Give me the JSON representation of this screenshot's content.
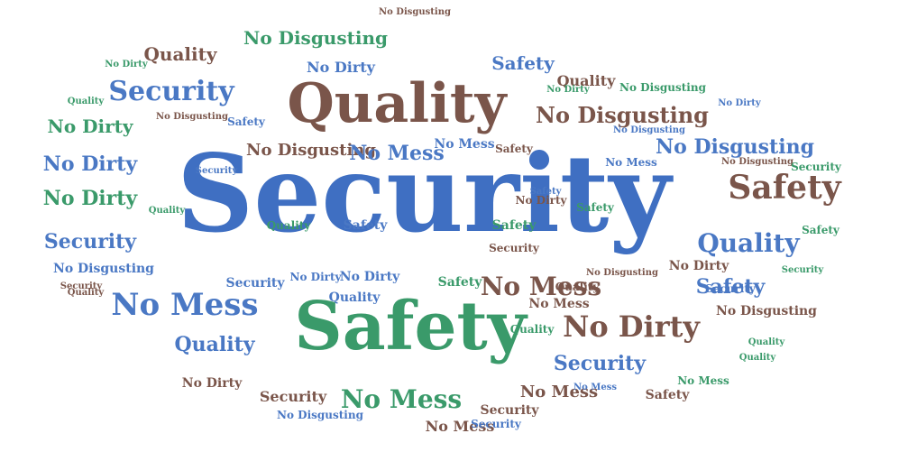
{
  "palette": {
    "blue": "#4a78c4",
    "lightblue": "#5b8fd6",
    "green": "#3a9a6a",
    "brown": "#7a554a",
    "royal": "#3f6fc2"
  },
  "words": [
    {
      "text": "Security",
      "color": "royal",
      "size": "xxl"
    },
    {
      "text": "Safety",
      "color": "green",
      "size": "xl"
    },
    {
      "text": "Quality",
      "color": "brown",
      "size": "xl"
    },
    {
      "text": "No Mess",
      "color": "blue",
      "size": "l"
    },
    {
      "text": "Safety",
      "color": "brown",
      "size": "l"
    },
    {
      "text": "No Dirty",
      "color": "brown",
      "size": "l"
    },
    {
      "text": "No Mess",
      "color": "green",
      "size": "l"
    },
    {
      "text": "Security",
      "color": "blue",
      "size": "m"
    },
    {
      "text": "Quality",
      "color": "blue",
      "size": "m"
    },
    {
      "text": "No Mess",
      "color": "brown",
      "size": "m"
    },
    {
      "text": "No Disgusting",
      "color": "brown",
      "size": "m"
    },
    {
      "text": "No Disgusting",
      "color": "blue",
      "size": "m"
    },
    {
      "text": "No Disgusting",
      "color": "green",
      "size": "m"
    },
    {
      "text": "No Disgusting",
      "color": "brown",
      "size": "s"
    },
    {
      "text": "No Mess",
      "color": "blue",
      "size": "m"
    },
    {
      "text": "Security",
      "color": "blue",
      "size": "m"
    },
    {
      "text": "Quality",
      "color": "blue",
      "size": "m"
    },
    {
      "text": "Safety",
      "color": "blue",
      "size": "m"
    },
    {
      "text": "Security",
      "color": "blue",
      "size": "m"
    },
    {
      "text": "No Dirty",
      "color": "blue",
      "size": "m"
    },
    {
      "text": "No Dirty",
      "color": "green",
      "size": "m"
    },
    {
      "text": "No Dirty",
      "color": "green",
      "size": "m"
    },
    {
      "text": "Safety",
      "color": "blue",
      "size": "m"
    },
    {
      "text": "Quality",
      "color": "brown",
      "size": "m"
    },
    {
      "text": "No Mess",
      "color": "brown",
      "size": "s"
    },
    {
      "text": "Security",
      "color": "brown",
      "size": "s"
    },
    {
      "text": "No Mess",
      "color": "brown",
      "size": "s"
    },
    {
      "text": "Quality",
      "color": "brown",
      "size": "s"
    },
    {
      "text": "Security",
      "color": "blue",
      "size": "s"
    },
    {
      "text": "Quality",
      "color": "blue",
      "size": "s"
    },
    {
      "text": "No Dirty",
      "color": "blue",
      "size": "s"
    },
    {
      "text": "Safety",
      "color": "blue",
      "size": "s"
    },
    {
      "text": "No Dirty",
      "color": "blue",
      "size": "s"
    },
    {
      "text": "Safety",
      "color": "green",
      "size": "s"
    },
    {
      "text": "No Disgusting",
      "color": "blue",
      "size": "s"
    },
    {
      "text": "No Mess",
      "color": "green",
      "size": "s"
    },
    {
      "text": "Security",
      "color": "brown",
      "size": "s"
    },
    {
      "text": "No Dirty",
      "color": "brown",
      "size": "s"
    },
    {
      "text": "Safety",
      "color": "green",
      "size": "s"
    },
    {
      "text": "No Dirty",
      "color": "blue",
      "size": "s"
    },
    {
      "text": "Quality",
      "color": "green",
      "size": "s"
    },
    {
      "text": "Safety",
      "color": "blue",
      "size": "s"
    },
    {
      "text": "No Mess",
      "color": "blue",
      "size": "s"
    },
    {
      "text": "Quality",
      "color": "brown",
      "size": "s"
    },
    {
      "text": "Quality",
      "color": "brown",
      "size": "s"
    },
    {
      "text": "No Disgusting",
      "color": "blue",
      "size": "s"
    },
    {
      "text": "Security",
      "color": "blue",
      "size": "s"
    },
    {
      "text": "Safety",
      "color": "brown",
      "size": "s"
    },
    {
      "text": "No Mess",
      "color": "brown",
      "size": "s"
    },
    {
      "text": "Quality",
      "color": "green",
      "size": "s"
    },
    {
      "text": "Security",
      "color": "blue",
      "size": "s"
    },
    {
      "text": "Safety",
      "color": "green",
      "size": "s"
    },
    {
      "text": "No Dirty",
      "color": "brown",
      "size": "s"
    },
    {
      "text": "No Disgusting",
      "color": "brown",
      "size": "s"
    },
    {
      "text": "No Dirty",
      "color": "brown",
      "size": "s"
    },
    {
      "text": "Security",
      "color": "brown",
      "size": "s"
    },
    {
      "text": "No Mess",
      "color": "blue",
      "size": "s"
    },
    {
      "text": "Quality",
      "color": "green",
      "size": "xs"
    },
    {
      "text": "No Disgusting",
      "color": "brown",
      "size": "xs"
    },
    {
      "text": "No Dirty",
      "color": "green",
      "size": "xs"
    },
    {
      "text": "Security",
      "color": "brown",
      "size": "xs"
    },
    {
      "text": "No Disgusting",
      "color": "green",
      "size": "xs"
    },
    {
      "text": "Safety",
      "color": "brown",
      "size": "xs"
    },
    {
      "text": "Quality",
      "color": "green",
      "size": "xs"
    },
    {
      "text": "No Disgusting",
      "color": "brown",
      "size": "xs"
    },
    {
      "text": "Security",
      "color": "blue",
      "size": "xs"
    },
    {
      "text": "No Mess",
      "color": "blue",
      "size": "xs"
    },
    {
      "text": "Quality",
      "color": "green",
      "size": "xs"
    },
    {
      "text": "Security",
      "color": "green",
      "size": "xs"
    },
    {
      "text": "No Disgusting",
      "color": "brown",
      "size": "xs"
    },
    {
      "text": "No Dirty",
      "color": "green",
      "size": "xs"
    },
    {
      "text": "Safety",
      "color": "blue",
      "size": "xs"
    },
    {
      "text": "No Disgusting",
      "color": "brown",
      "size": "xs"
    },
    {
      "text": "Quality",
      "color": "green",
      "size": "xs"
    },
    {
      "text": "Safety",
      "color": "green",
      "size": "xs"
    },
    {
      "text": "No Dirty",
      "color": "blue",
      "size": "xs"
    },
    {
      "text": "Security",
      "color": "green",
      "size": "xs"
    },
    {
      "text": "No Disgusting",
      "color": "blue",
      "size": "xs"
    }
  ]
}
